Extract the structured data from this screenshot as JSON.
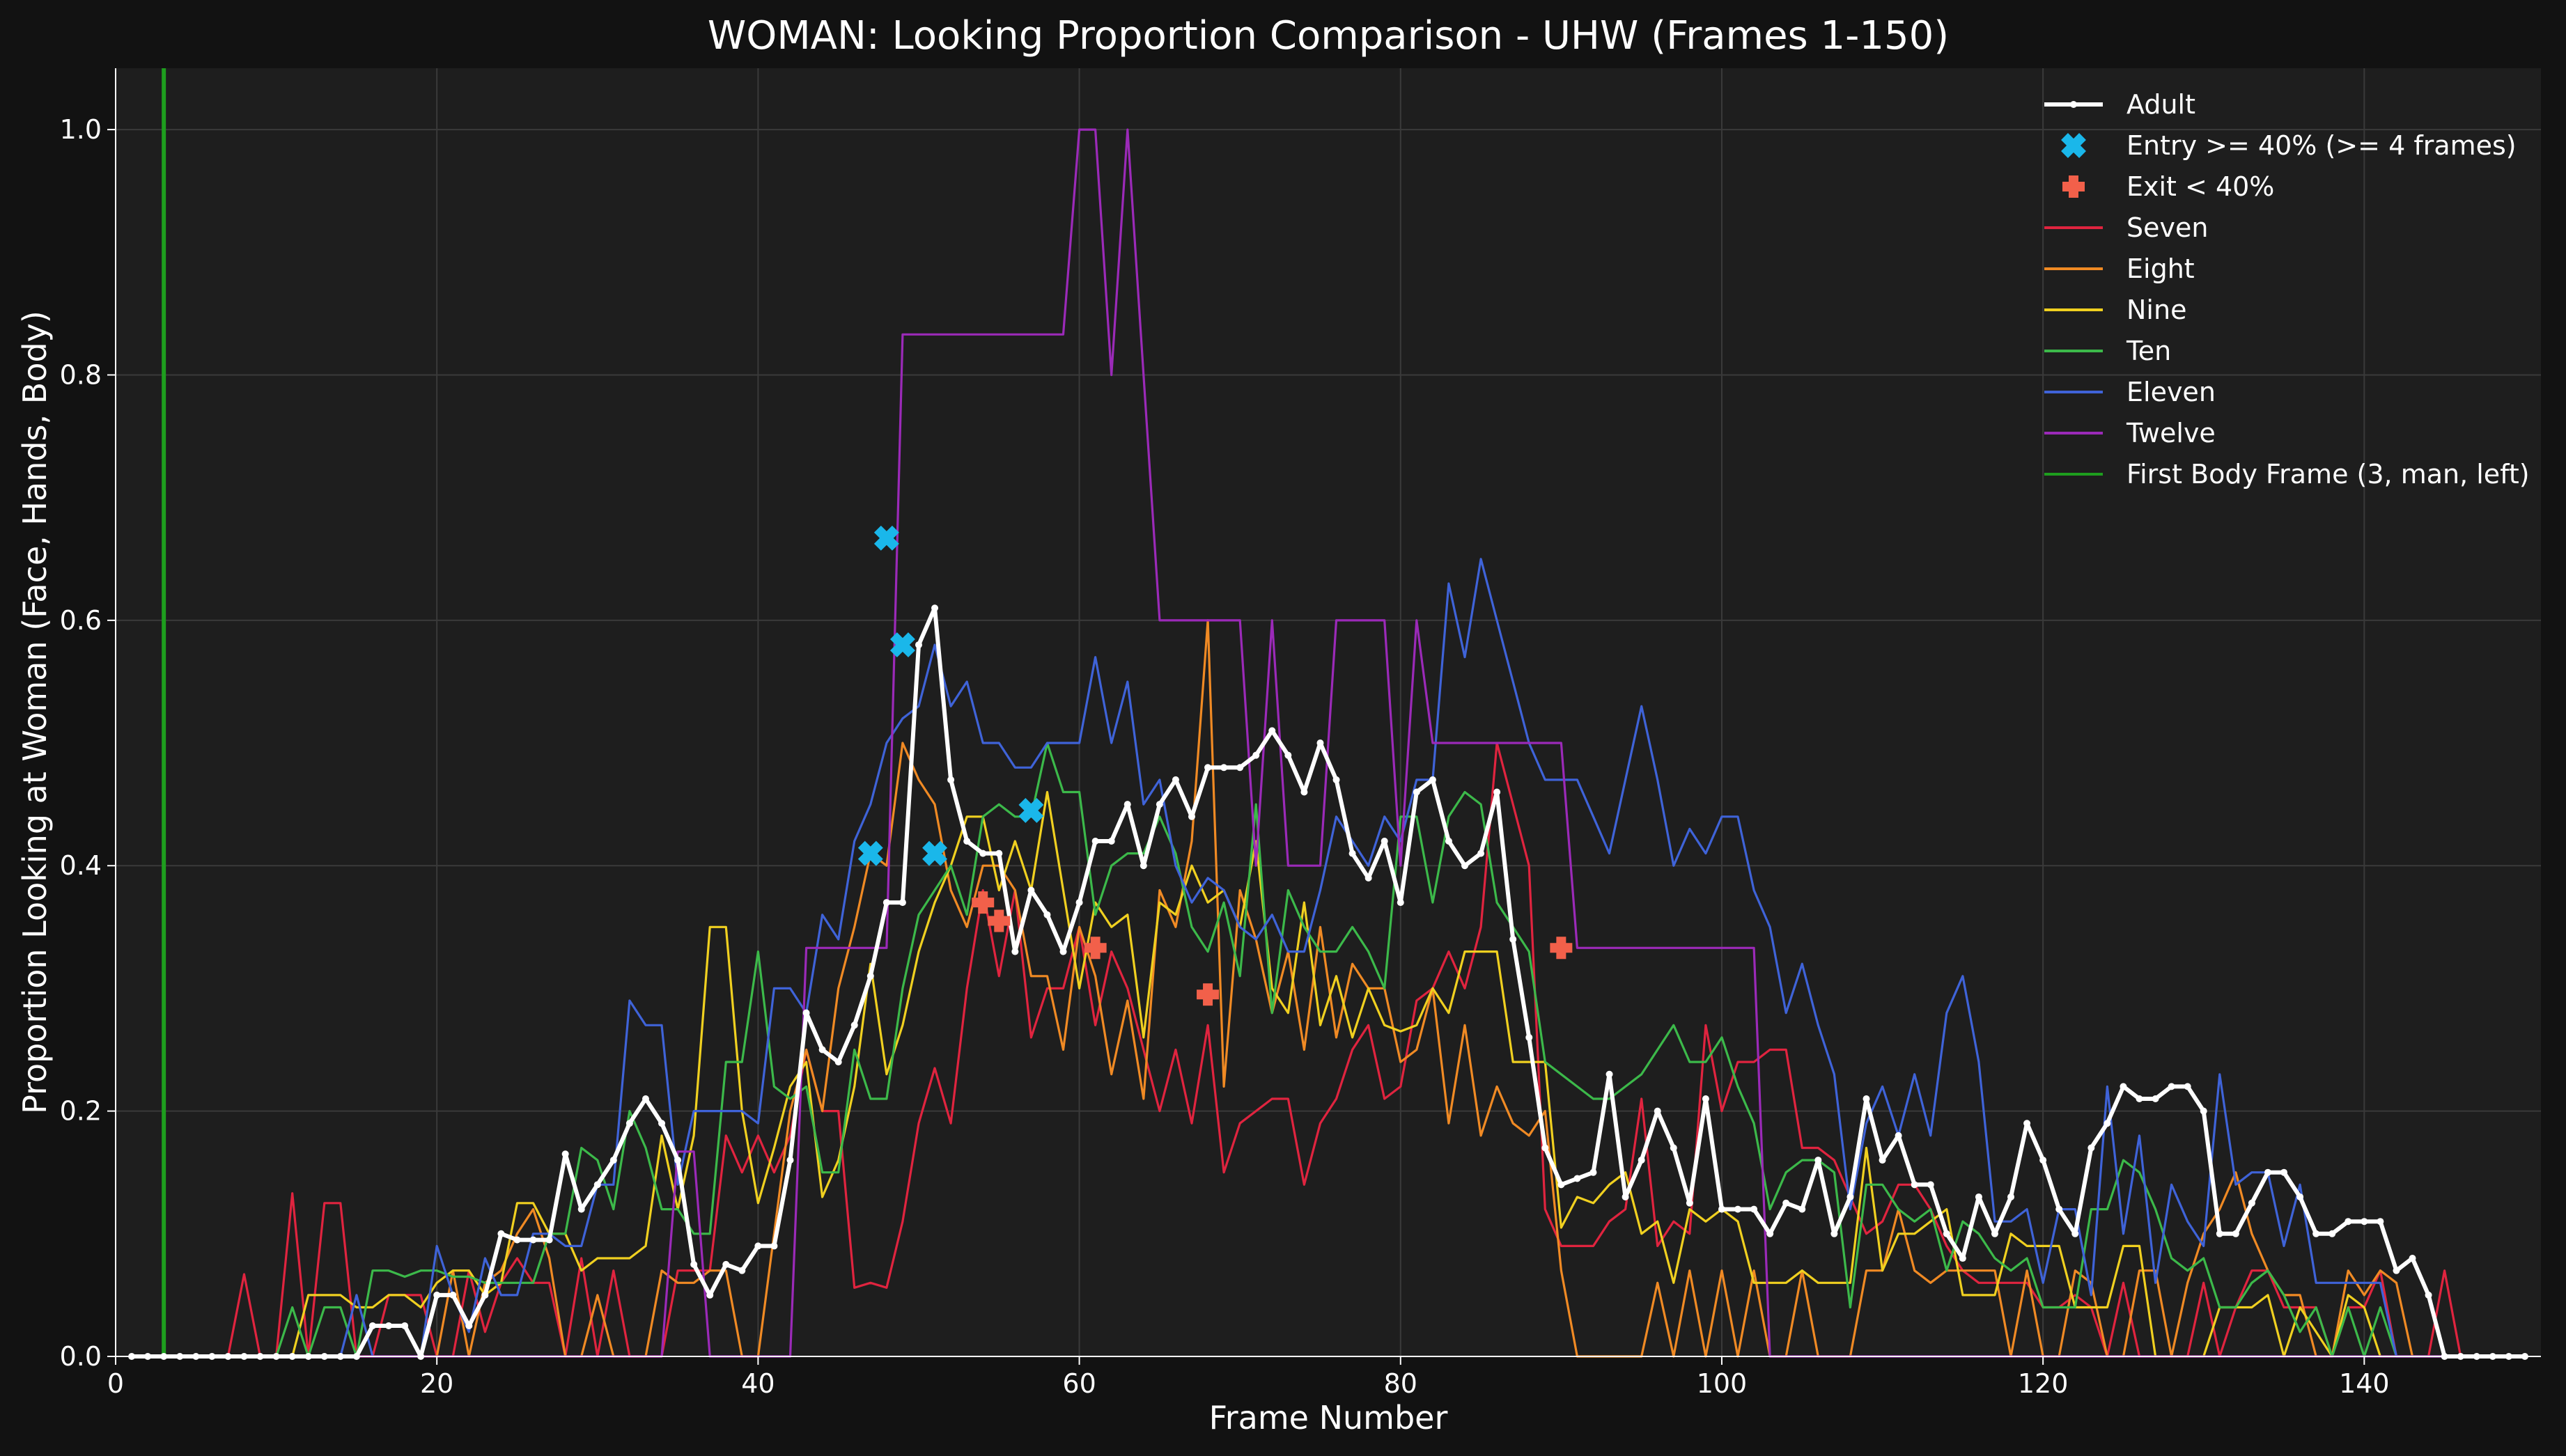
{
  "chart_data": {
    "type": "line",
    "title": "WOMAN: Looking Proportion Comparison - UHW (Frames 1-150)",
    "xlabel": "Frame Number",
    "ylabel": "Proportion Looking at Woman (Face, Hands, Body)",
    "xlim": [
      0,
      151
    ],
    "ylim": [
      0,
      1.05
    ],
    "x_ticks": [
      0,
      20,
      40,
      60,
      80,
      100,
      120,
      140
    ],
    "y_ticks": [
      "0.0",
      "0.2",
      "0.4",
      "0.6",
      "0.8",
      "1.0"
    ],
    "grid": true,
    "legend_position": "top-right",
    "background": "#1e1e1e",
    "x_start": 1,
    "vertical_line": {
      "name": "First Body Frame (3, man, left)",
      "x": 3,
      "color": "#1e9e1e"
    },
    "series": [
      {
        "name": "Seven",
        "color": "#e0243f",
        "values": [
          0,
          0,
          0,
          0,
          0,
          0,
          0,
          0.067,
          0,
          0,
          0.133,
          0,
          0.125,
          0.125,
          0,
          0,
          0.05,
          0.05,
          0.05,
          0,
          0,
          0.07,
          0.02,
          0.06,
          0.08,
          0.06,
          0.06,
          0,
          0.08,
          0,
          0.07,
          0,
          0,
          0,
          0.07,
          0.07,
          0.07,
          0.18,
          0.15,
          0.18,
          0.15,
          0.18,
          0.25,
          0.2,
          0.2,
          0.056,
          0.06,
          0.056,
          0.11,
          0.19,
          0.235,
          0.19,
          0.3,
          0.38,
          0.31,
          0.38,
          0.26,
          0.3,
          0.3,
          0.35,
          0.27,
          0.33,
          0.3,
          0.25,
          0.2,
          0.25,
          0.19,
          0.27,
          0.15,
          0.19,
          0.2,
          0.21,
          0.21,
          0.14,
          0.19,
          0.21,
          0.25,
          0.27,
          0.21,
          0.22,
          0.29,
          0.3,
          0.33,
          0.3,
          0.35,
          0.5,
          0.45,
          0.4,
          0.12,
          0.09,
          0.09,
          0.09,
          0.11,
          0.12,
          0.21,
          0.09,
          0.11,
          0.1,
          0.27,
          0.2,
          0.24,
          0.24,
          0.25,
          0.25,
          0.17,
          0.17,
          0.16,
          0.13,
          0.1,
          0.11,
          0.14,
          0.14,
          0.12,
          0.09,
          0.07,
          0.06,
          0.06,
          0.06,
          0.06,
          0.04,
          0.04,
          0.05,
          0.04,
          0,
          0.06,
          0,
          0,
          0,
          0,
          0.06,
          0,
          0.04,
          0.07,
          0.07,
          0.04,
          0.04,
          0.04,
          0,
          0.04,
          0.04,
          0.07,
          0,
          0,
          0,
          0.07,
          0,
          0,
          0,
          0,
          0
        ]
      },
      {
        "name": "Eight",
        "color": "#f08a24",
        "values": [
          0,
          0,
          0,
          0,
          0,
          0,
          0,
          0,
          0,
          0,
          0,
          0,
          0,
          0,
          0,
          0,
          0,
          0,
          0,
          0,
          0.07,
          0,
          0.06,
          0.07,
          0.1,
          0.12,
          0.08,
          0,
          0,
          0.05,
          0,
          0,
          0,
          0.07,
          0.06,
          0.06,
          0.07,
          0.07,
          0,
          0,
          0.1,
          0.2,
          0.25,
          0.2,
          0.3,
          0.35,
          0.41,
          0.4,
          0.5,
          0.47,
          0.45,
          0.38,
          0.35,
          0.4,
          0.4,
          0.38,
          0.31,
          0.31,
          0.25,
          0.35,
          0.31,
          0.23,
          0.29,
          0.21,
          0.38,
          0.35,
          0.42,
          0.6,
          0.22,
          0.38,
          0.34,
          0.28,
          0.33,
          0.25,
          0.35,
          0.26,
          0.32,
          0.3,
          0.3,
          0.24,
          0.25,
          0.3,
          0.19,
          0.27,
          0.18,
          0.22,
          0.19,
          0.18,
          0.2,
          0.07,
          0,
          0,
          0,
          0,
          0,
          0.06,
          0,
          0.07,
          0,
          0.07,
          0,
          0.07,
          0,
          0,
          0.07,
          0,
          0,
          0,
          0.07,
          0.07,
          0.12,
          0.07,
          0.06,
          0.07,
          0.07,
          0.07,
          0.07,
          0,
          0.07,
          0,
          0,
          0.07,
          0.06,
          0,
          0,
          0.07,
          0.07,
          0,
          0.06,
          0.1,
          0.12,
          0.15,
          0.1,
          0.07,
          0.05,
          0.05,
          0,
          0,
          0.07,
          0.05,
          0.07,
          0.06,
          0,
          0,
          0,
          0,
          0,
          0
        ]
      },
      {
        "name": "Nine",
        "color": "#f0d020",
        "values": [
          0,
          0,
          0,
          0,
          0,
          0,
          0,
          0,
          0,
          0,
          0,
          0.05,
          0.05,
          0.05,
          0.04,
          0.04,
          0.05,
          0.05,
          0.04,
          0.06,
          0.07,
          0.07,
          0.05,
          0.06,
          0.125,
          0.125,
          0.1,
          0.1,
          0.07,
          0.08,
          0.08,
          0.08,
          0.09,
          0.18,
          0.12,
          0.18,
          0.35,
          0.35,
          0.2,
          0.125,
          0.17,
          0.22,
          0.24,
          0.13,
          0.16,
          0.22,
          0.32,
          0.23,
          0.27,
          0.33,
          0.37,
          0.4,
          0.44,
          0.44,
          0.38,
          0.42,
          0.38,
          0.46,
          0.38,
          0.3,
          0.37,
          0.35,
          0.36,
          0.26,
          0.37,
          0.36,
          0.4,
          0.37,
          0.38,
          0.35,
          0.42,
          0.3,
          0.28,
          0.37,
          0.27,
          0.31,
          0.26,
          0.3,
          0.27,
          0.265,
          0.27,
          0.3,
          0.28,
          0.33,
          0.33,
          0.33,
          0.24,
          0.24,
          0.24,
          0.105,
          0.13,
          0.125,
          0.14,
          0.15,
          0.1,
          0.11,
          0.06,
          0.12,
          0.11,
          0.12,
          0.11,
          0.06,
          0.06,
          0.06,
          0.07,
          0.06,
          0.06,
          0.06,
          0.17,
          0.07,
          0.1,
          0.1,
          0.11,
          0.12,
          0.05,
          0.05,
          0.05,
          0.1,
          0.09,
          0.09,
          0.09,
          0.04,
          0.04,
          0.04,
          0.09,
          0.09,
          0,
          0,
          0,
          0,
          0.04,
          0.04,
          0.04,
          0.05,
          0,
          0.04,
          0.02,
          0,
          0.05,
          0.04,
          0,
          0,
          0,
          0,
          0,
          0
        ]
      },
      {
        "name": "Ten",
        "color": "#3cb94a",
        "values": [
          0,
          0,
          0,
          0,
          0,
          0,
          0,
          0,
          0,
          0,
          0.04,
          0,
          0.04,
          0.04,
          0,
          0.07,
          0.07,
          0.065,
          0.07,
          0.07,
          0.065,
          0.065,
          0.06,
          0.06,
          0.06,
          0.06,
          0.1,
          0.1,
          0.17,
          0.16,
          0.12,
          0.2,
          0.17,
          0.12,
          0.12,
          0.1,
          0.1,
          0.24,
          0.24,
          0.33,
          0.22,
          0.21,
          0.22,
          0.15,
          0.15,
          0.25,
          0.21,
          0.21,
          0.3,
          0.36,
          0.38,
          0.4,
          0.36,
          0.44,
          0.45,
          0.44,
          0.44,
          0.5,
          0.46,
          0.46,
          0.36,
          0.4,
          0.41,
          0.41,
          0.44,
          0.41,
          0.35,
          0.33,
          0.37,
          0.31,
          0.45,
          0.28,
          0.38,
          0.35,
          0.33,
          0.33,
          0.35,
          0.33,
          0.3,
          0.44,
          0.44,
          0.37,
          0.44,
          0.46,
          0.45,
          0.37,
          0.35,
          0.33,
          0.24,
          0.23,
          0.22,
          0.21,
          0.21,
          0.22,
          0.23,
          0.25,
          0.27,
          0.24,
          0.24,
          0.26,
          0.22,
          0.19,
          0.12,
          0.15,
          0.16,
          0.16,
          0.15,
          0.04,
          0.14,
          0.14,
          0.12,
          0.11,
          0.12,
          0.07,
          0.11,
          0.1,
          0.08,
          0.07,
          0.08,
          0.04,
          0.04,
          0.04,
          0.12,
          0.12,
          0.16,
          0.15,
          0.12,
          0.08,
          0.07,
          0.08,
          0.04,
          0.04,
          0.06,
          0.07,
          0.05,
          0.02,
          0.04,
          0,
          0.04,
          0,
          0.04,
          0,
          0,
          0,
          0,
          0
        ]
      },
      {
        "name": "Eleven",
        "color": "#3f63d8",
        "values": [
          0,
          0,
          0,
          0,
          0,
          0,
          0,
          0,
          0,
          0,
          0,
          0,
          0,
          0,
          0.05,
          0,
          0,
          0,
          0,
          0.09,
          0.05,
          0.02,
          0.08,
          0.05,
          0.05,
          0.1,
          0.1,
          0.09,
          0.09,
          0.14,
          0.14,
          0.29,
          0.27,
          0.27,
          0.14,
          0.2,
          0.2,
          0.2,
          0.2,
          0.19,
          0.3,
          0.3,
          0.28,
          0.36,
          0.34,
          0.42,
          0.45,
          0.5,
          0.52,
          0.53,
          0.58,
          0.53,
          0.55,
          0.5,
          0.5,
          0.48,
          0.48,
          0.5,
          0.5,
          0.5,
          0.57,
          0.5,
          0.55,
          0.45,
          0.47,
          0.4,
          0.37,
          0.39,
          0.38,
          0.35,
          0.34,
          0.36,
          0.33,
          0.33,
          0.38,
          0.44,
          0.42,
          0.4,
          0.44,
          0.42,
          0.47,
          0.47,
          0.63,
          0.57,
          0.65,
          0.6,
          0.55,
          0.5,
          0.47,
          0.47,
          0.47,
          0.44,
          0.41,
          0.47,
          0.53,
          0.47,
          0.4,
          0.43,
          0.41,
          0.44,
          0.44,
          0.38,
          0.35,
          0.28,
          0.32,
          0.27,
          0.23,
          0.12,
          0.19,
          0.22,
          0.18,
          0.23,
          0.18,
          0.28,
          0.31,
          0.24,
          0.11,
          0.11,
          0.12,
          0.06,
          0.12,
          0.12,
          0.05,
          0.22,
          0.1,
          0.18,
          0.06,
          0.14,
          0.11,
          0.09,
          0.23,
          0.14,
          0.15,
          0.15,
          0.09,
          0.14,
          0.06,
          0.06,
          0.06,
          0.06,
          0.06,
          0,
          0,
          0,
          0,
          0
        ]
      },
      {
        "name": "Twelve",
        "color": "#9b2ab8",
        "values": [
          0,
          0,
          0,
          0,
          0,
          0,
          0,
          0,
          0,
          0,
          0,
          0,
          0,
          0,
          0,
          0,
          0,
          0,
          0,
          0,
          0,
          0,
          0,
          0,
          0,
          0,
          0,
          0,
          0,
          0,
          0,
          0,
          0,
          0,
          0.167,
          0.167,
          0,
          0,
          0,
          0,
          0,
          0,
          0.333,
          0.333,
          0.333,
          0.333,
          0.333,
          0.333,
          0.833,
          0.833,
          0.833,
          0.833,
          0.833,
          0.833,
          0.833,
          0.833,
          0.833,
          0.833,
          0.833,
          1,
          1,
          0.8,
          1,
          0.8,
          0.6,
          0.6,
          0.6,
          0.6,
          0.6,
          0.6,
          0.4,
          0.6,
          0.4,
          0.4,
          0.4,
          0.6,
          0.6,
          0.6,
          0.6,
          0.4,
          0.6,
          0.5,
          0.5,
          0.5,
          0.5,
          0.5,
          0.5,
          0.5,
          0.5,
          0.5,
          0.333,
          0.333,
          0.333,
          0.333,
          0.333,
          0.333,
          0.333,
          0.333,
          0.333,
          0.333,
          0.333,
          0.333,
          0,
          0,
          0,
          0,
          0,
          0,
          0,
          0,
          0,
          0,
          0,
          0,
          0,
          0,
          0,
          0,
          0,
          0,
          0,
          0,
          0,
          0,
          0,
          0,
          0,
          0,
          0,
          0,
          0,
          0,
          0,
          0,
          0,
          0,
          0,
          0,
          0,
          0,
          0,
          0,
          0,
          0,
          0,
          0,
          0,
          0,
          0,
          0
        ]
      },
      {
        "name": "Adult",
        "color": "#ffffff",
        "values": [
          0,
          0,
          0,
          0,
          0,
          0,
          0,
          0,
          0,
          0,
          0,
          0,
          0,
          0,
          0,
          0.025,
          0.025,
          0.025,
          0,
          0.05,
          0.05,
          0.025,
          0.05,
          0.1,
          0.095,
          0.095,
          0.095,
          0.165,
          0.12,
          0.14,
          0.16,
          0.19,
          0.21,
          0.19,
          0.16,
          0.075,
          0.05,
          0.075,
          0.07,
          0.09,
          0.09,
          0.16,
          0.28,
          0.25,
          0.24,
          0.27,
          0.31,
          0.37,
          0.37,
          0.58,
          0.61,
          0.47,
          0.42,
          0.41,
          0.41,
          0.33,
          0.38,
          0.36,
          0.33,
          0.37,
          0.42,
          0.42,
          0.45,
          0.4,
          0.45,
          0.47,
          0.44,
          0.48,
          0.48,
          0.48,
          0.49,
          0.51,
          0.49,
          0.46,
          0.5,
          0.47,
          0.41,
          0.39,
          0.42,
          0.37,
          0.46,
          0.47,
          0.42,
          0.4,
          0.41,
          0.46,
          0.34,
          0.26,
          0.17,
          0.14,
          0.145,
          0.15,
          0.23,
          0.13,
          0.16,
          0.2,
          0.17,
          0.125,
          0.21,
          0.12,
          0.12,
          0.12,
          0.1,
          0.125,
          0.12,
          0.16,
          0.1,
          0.13,
          0.21,
          0.16,
          0.18,
          0.14,
          0.14,
          0.1,
          0.08,
          0.13,
          0.1,
          0.13,
          0.19,
          0.16,
          0.12,
          0.1,
          0.17,
          0.19,
          0.22,
          0.21,
          0.21,
          0.22,
          0.22,
          0.2,
          0.1,
          0.1,
          0.125,
          0.15,
          0.15,
          0.13,
          0.1,
          0.1,
          0.11,
          0.11,
          0.11,
          0.07,
          0.08,
          0.05,
          0,
          0,
          0,
          0,
          0,
          0
        ]
      }
    ],
    "entry_markers": {
      "name": "Entry >= 40% (>= 4 frames)",
      "color": "#1ab7ea",
      "points": [
        [
          47,
          0.41
        ],
        [
          48,
          0.667
        ],
        [
          49,
          0.58
        ],
        [
          51,
          0.41
        ],
        [
          57,
          0.445
        ]
      ]
    },
    "exit_markers": {
      "name": "Exit < 40%",
      "color": "#f2604a",
      "points": [
        [
          54,
          0.37
        ],
        [
          55,
          0.355
        ],
        [
          61,
          0.333
        ],
        [
          68,
          0.295
        ],
        [
          90,
          0.333
        ]
      ]
    },
    "legend": [
      {
        "label": "Adult",
        "color": "#ffffff",
        "kind": "line-dots"
      },
      {
        "label": "Entry >= 40% (>= 4 frames)",
        "color": "#1ab7ea",
        "kind": "x-marker"
      },
      {
        "label": "Exit < 40%",
        "color": "#f2604a",
        "kind": "plus-marker"
      },
      {
        "label": "Seven",
        "color": "#e0243f",
        "kind": "line"
      },
      {
        "label": "Eight",
        "color": "#f08a24",
        "kind": "line"
      },
      {
        "label": "Nine",
        "color": "#f0d020",
        "kind": "line"
      },
      {
        "label": "Ten",
        "color": "#3cb94a",
        "kind": "line"
      },
      {
        "label": "Eleven",
        "color": "#3f63d8",
        "kind": "line"
      },
      {
        "label": "Twelve",
        "color": "#9b2ab8",
        "kind": "line"
      },
      {
        "label": "First Body Frame (3, man, left)",
        "color": "#1e9e1e",
        "kind": "line"
      }
    ]
  }
}
